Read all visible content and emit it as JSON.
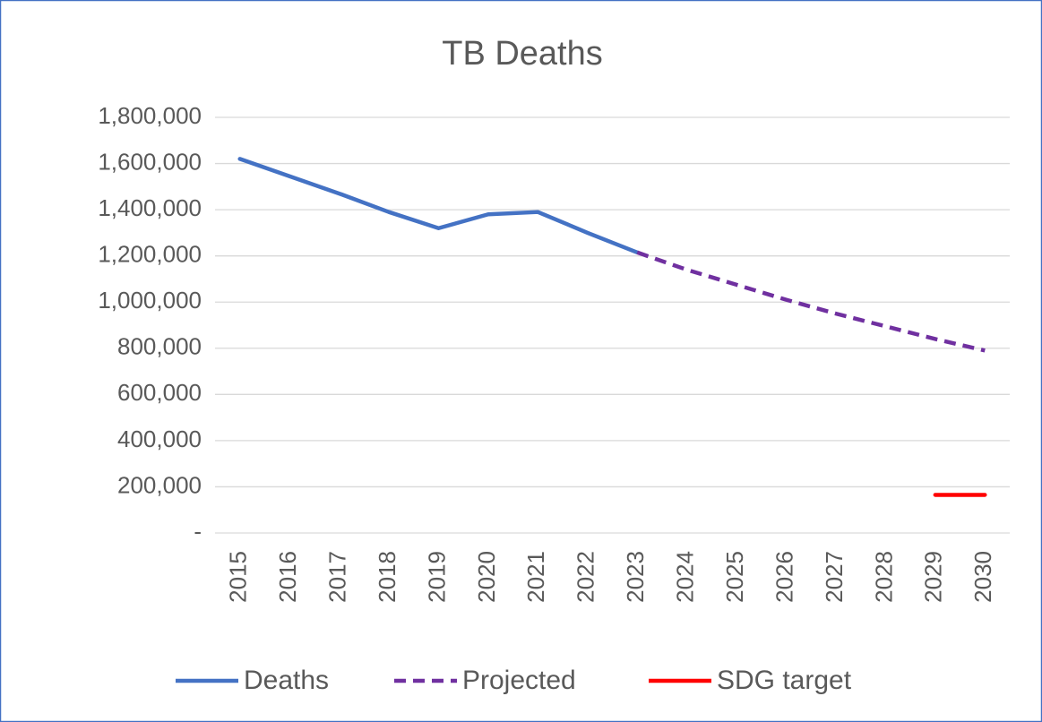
{
  "chart_data": {
    "type": "line",
    "title": "TB Deaths",
    "categories": [
      "2015",
      "2016",
      "2017",
      "2018",
      "2019",
      "2020",
      "2021",
      "2022",
      "2023",
      "2024",
      "2025",
      "2026",
      "2027",
      "2028",
      "2029",
      "2030"
    ],
    "series": [
      {
        "name": "Deaths",
        "color": "#4472c4",
        "dash": false,
        "values": [
          1620000,
          1545000,
          1470000,
          1390000,
          1320000,
          1380000,
          1390000,
          1300000,
          1215000,
          null,
          null,
          null,
          null,
          null,
          null,
          null
        ]
      },
      {
        "name": "Projected",
        "color": "#7030a0",
        "dash": true,
        "values": [
          null,
          null,
          null,
          null,
          null,
          null,
          null,
          null,
          1215000,
          1140000,
          1075000,
          1010000,
          950000,
          895000,
          840000,
          790000
        ]
      },
      {
        "name": "SDG target",
        "color": "#ff0000",
        "dash": false,
        "values": [
          null,
          null,
          null,
          null,
          null,
          null,
          null,
          null,
          null,
          null,
          null,
          null,
          null,
          null,
          165000,
          165000
        ]
      }
    ],
    "ylim": [
      0,
      1800000
    ],
    "yticks": [
      {
        "value": 0,
        "label": "-"
      },
      {
        "value": 200000,
        "label": "200,000"
      },
      {
        "value": 400000,
        "label": "400,000"
      },
      {
        "value": 600000,
        "label": "600,000"
      },
      {
        "value": 800000,
        "label": "800,000"
      },
      {
        "value": 1000000,
        "label": "1,000,000"
      },
      {
        "value": 1200000,
        "label": "1,200,000"
      },
      {
        "value": 1400000,
        "label": "1,400,000"
      },
      {
        "value": 1600000,
        "label": "1,600,000"
      },
      {
        "value": 1800000,
        "label": "1,800,000"
      }
    ],
    "grid": true,
    "legend": "bottom"
  }
}
